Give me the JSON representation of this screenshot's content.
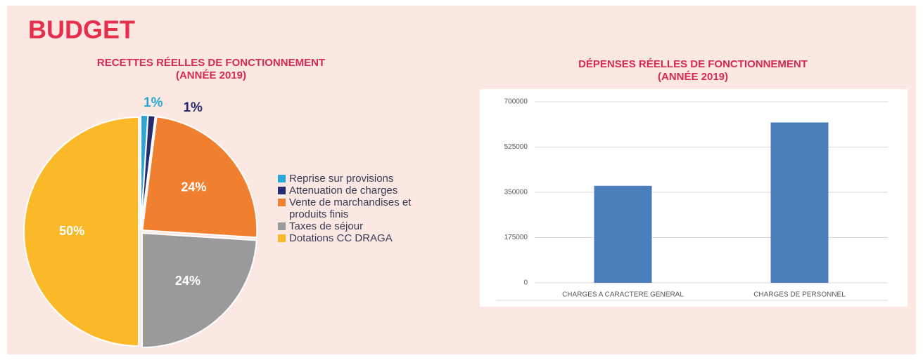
{
  "title": "BUDGET",
  "chart_data": [
    {
      "type": "pie",
      "title": "RECETTES RÉELLES DE FONCTIONNEMENT",
      "subtitle": "(ANNÉE 2019)",
      "categories": [
        "Reprise sur provisions",
        "Attenuation de charges",
        "Vente de marchandises et produits finis",
        "Taxes de séjour",
        "Dotations CC DRAGA"
      ],
      "values": [
        1,
        1,
        24,
        24,
        50
      ],
      "value_labels": [
        "1%",
        "1%",
        "24%",
        "24%",
        "50%"
      ],
      "colors": [
        "#2aa7d5",
        "#262a6e",
        "#f07f30",
        "#9a9a9c",
        "#fbb829"
      ],
      "legend": "right"
    },
    {
      "type": "bar",
      "title": "DÉPENSES RÉELLES DE FONCTIONNEMENT",
      "subtitle": "(ANNÉE 2019)",
      "categories": [
        "CHARGES A CARACTERE GENERAL",
        "CHARGES DE PERSONNEL"
      ],
      "values": [
        375000,
        620000
      ],
      "color": "#4a7ebb",
      "ylim": [
        0,
        700000
      ],
      "yticks": [
        0,
        175000,
        350000,
        525000,
        700000
      ],
      "grid": true
    }
  ]
}
